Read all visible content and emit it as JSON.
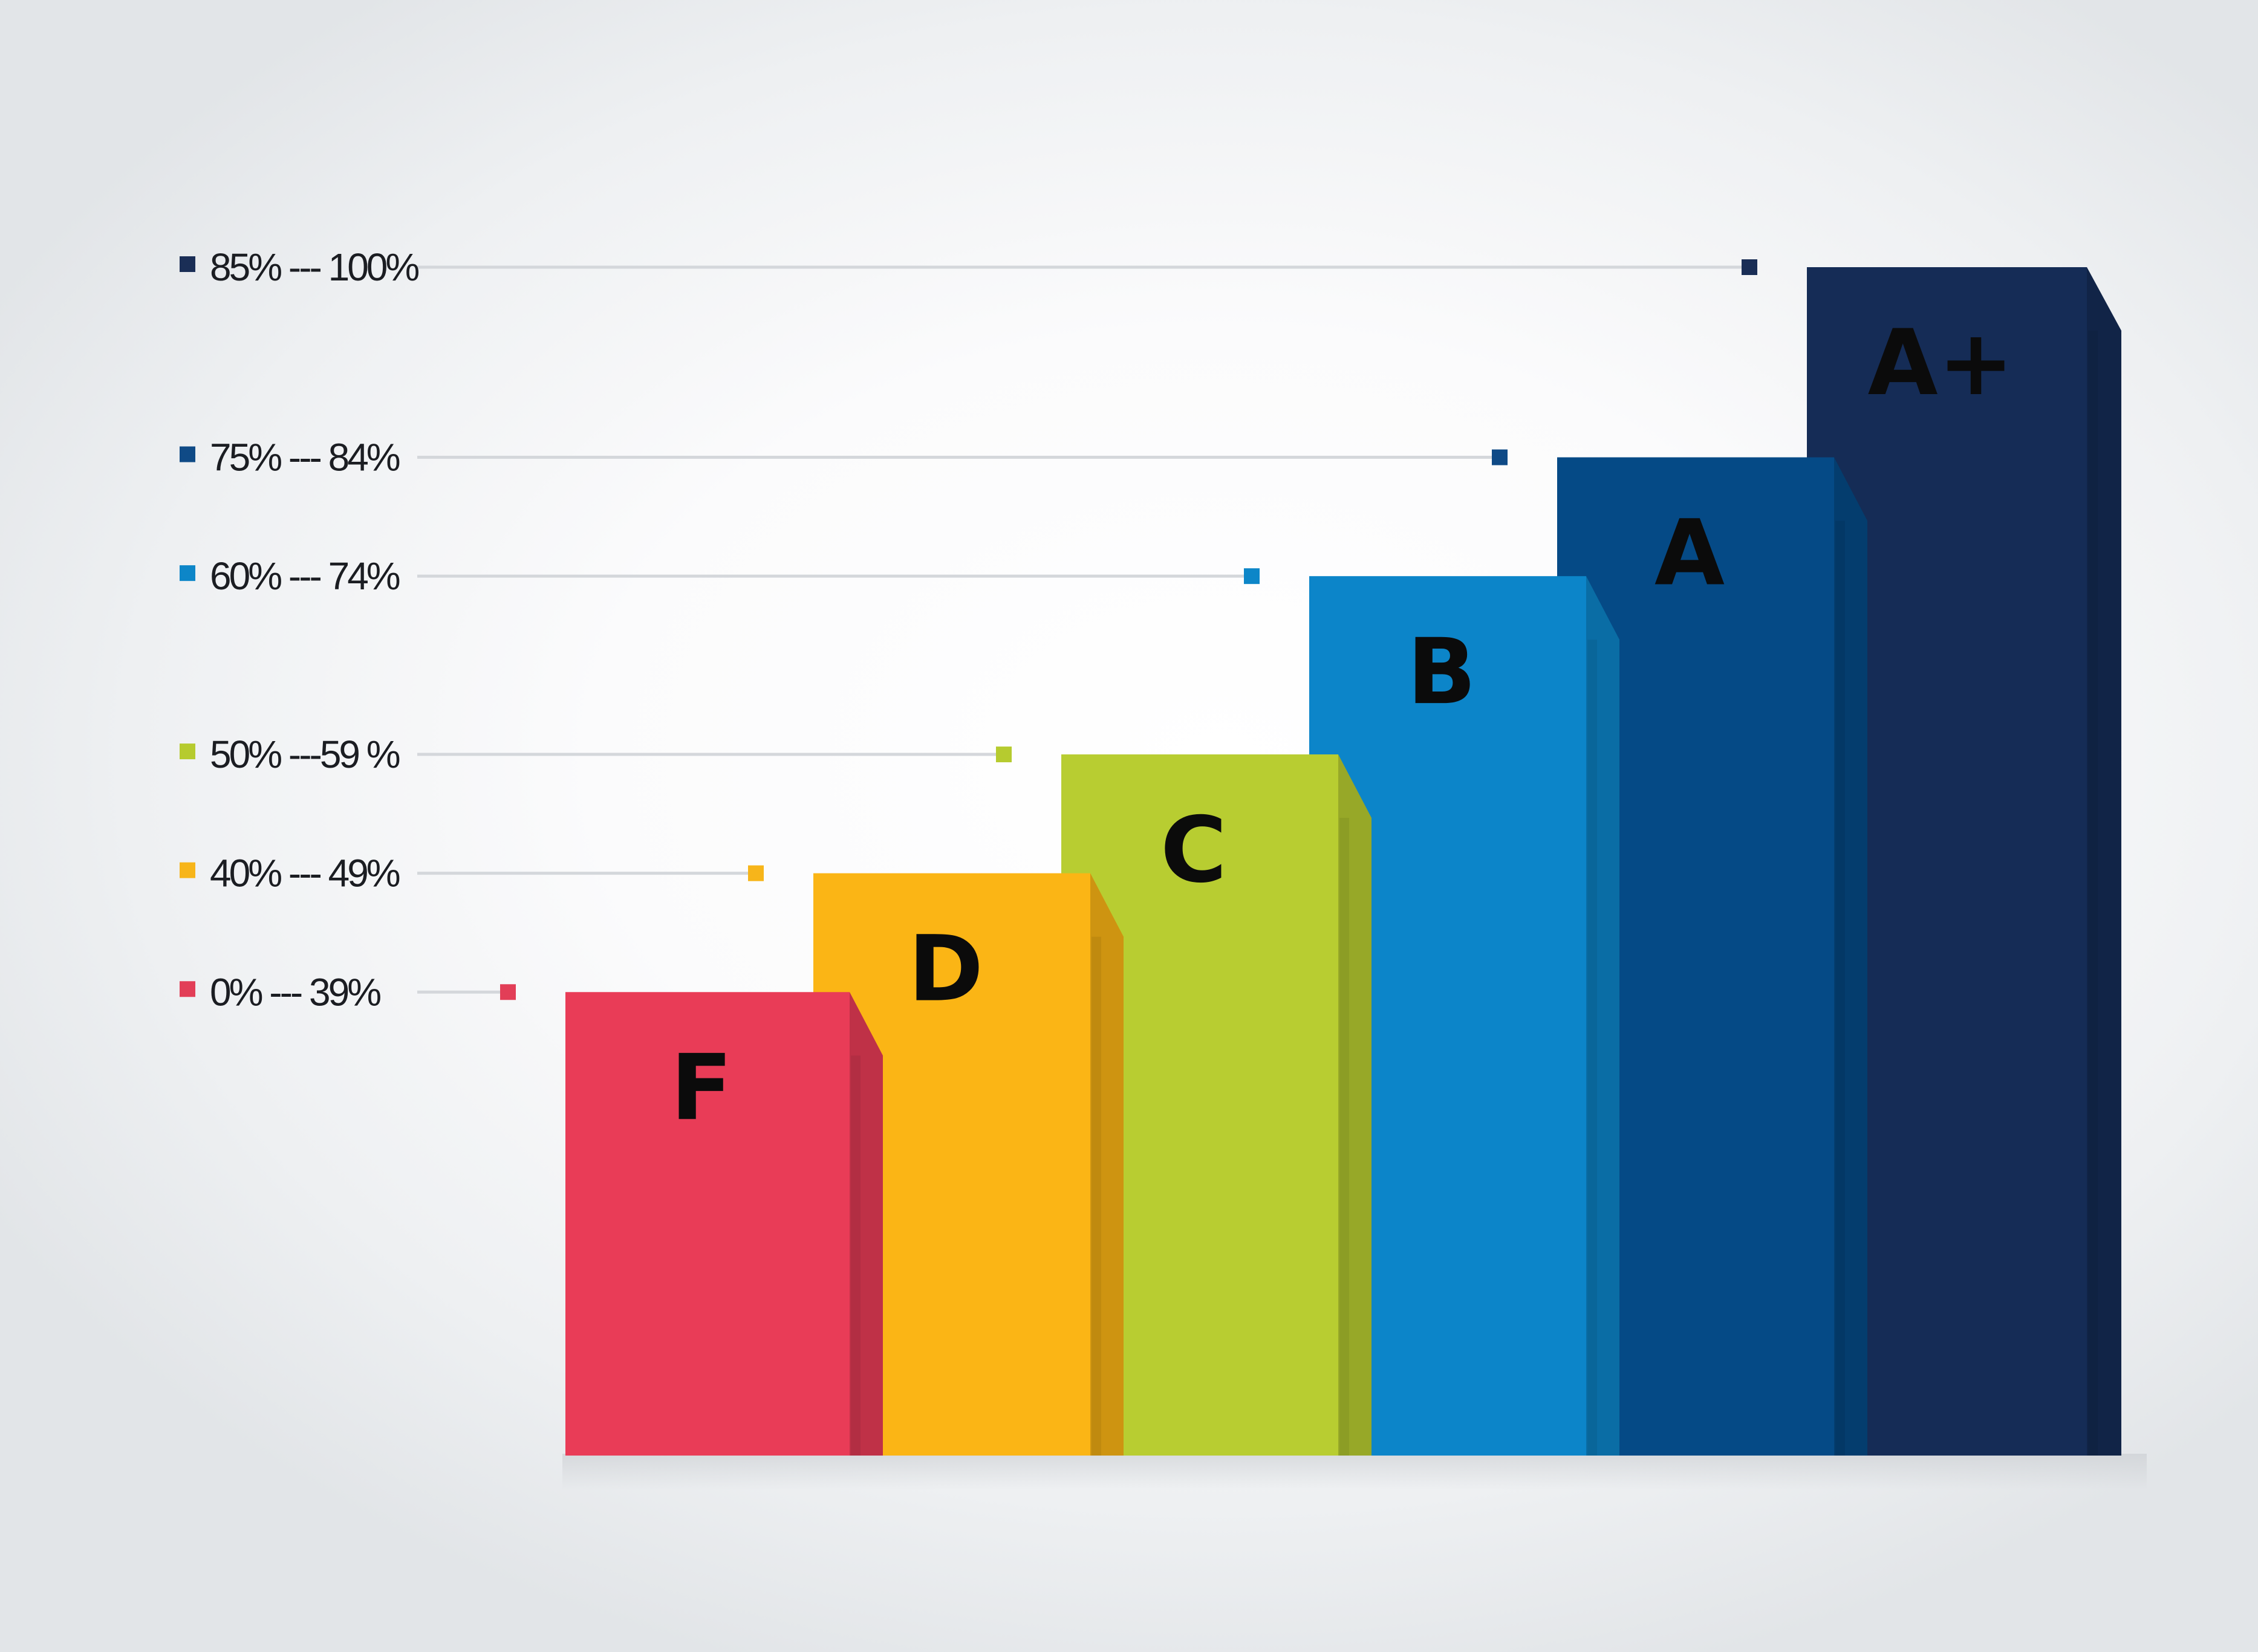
{
  "chart_data": {
    "type": "bar",
    "title": "",
    "xlabel": "",
    "ylabel": "",
    "categories": [
      "F",
      "D",
      "C",
      "B",
      "A",
      "A+"
    ],
    "values": [
      39,
      49,
      59,
      74,
      84,
      100
    ],
    "ylim": [
      0,
      100
    ],
    "grid": false,
    "legend_placement": "left",
    "legend": [
      {
        "label": "85% --- 100%",
        "color": "#1a2e56"
      },
      {
        "label": "75% --- 84%",
        "color": "#0f4a86"
      },
      {
        "label": "60% --- 74%",
        "color": "#0d86c8"
      },
      {
        "label": "50% ---59 %",
        "color": "#b6cb2f"
      },
      {
        "label": "40% --- 49%",
        "color": "#f7b51a"
      },
      {
        "label": "0% --- 39%",
        "color": "#e23e57"
      }
    ],
    "colors": [
      "#e93c57",
      "#fbb515",
      "#b8cd31",
      "#0c85c9",
      "#054a86",
      "#152c56"
    ]
  }
}
